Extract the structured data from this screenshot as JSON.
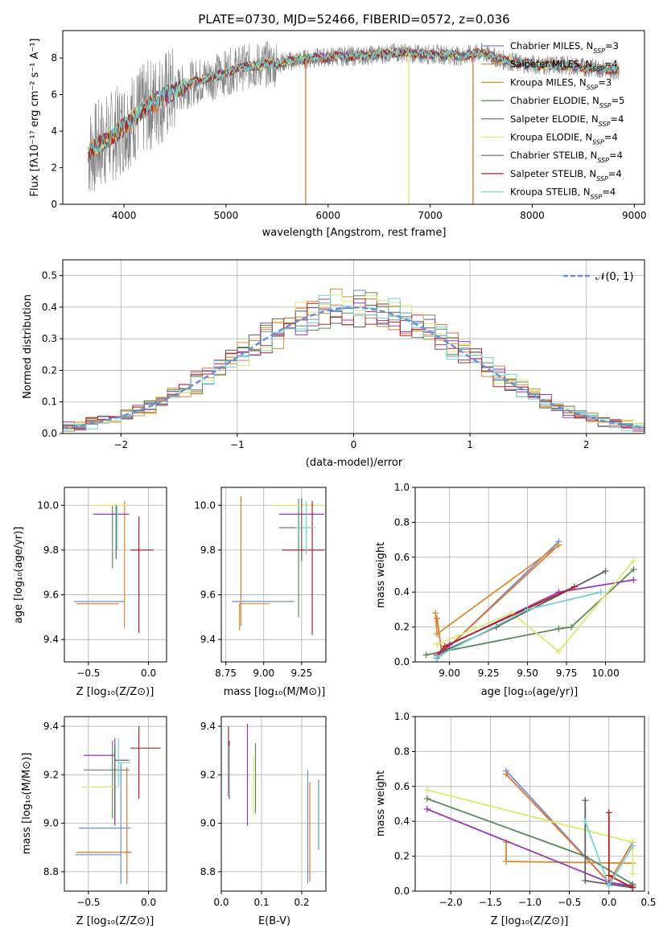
{
  "figure": {
    "title": "PLATE=0730, MJD=52466, FIBERID=0572, z=0.036"
  },
  "colors": {
    "series": [
      "#6a8fd6",
      "#e9722c",
      "#d98b2e",
      "#5a8a5a",
      "#9b37b5",
      "#dde96a",
      "#5f5f5f",
      "#b22222",
      "#6fd3d3"
    ],
    "normal": "#6a8fd6",
    "grid": "#b0b0b0",
    "data_gray": "#808080"
  },
  "chart_data": [
    {
      "id": "spectrum",
      "type": "line",
      "xlabel": "wavelength [Angstrom, rest frame]",
      "ylabel": "Flux [fλ10⁻¹⁷ erg cm⁻² s⁻¹ A⁻¹]",
      "xlim": [
        3400,
        9100
      ],
      "ylim": [
        0,
        9.5
      ],
      "xticks": [
        "4000",
        "5000",
        "6000",
        "7000",
        "8000",
        "9000"
      ],
      "yticks": [
        "0",
        "2",
        "4",
        "6",
        "8"
      ],
      "grid": false,
      "legend_position": "top-right",
      "legend": [
        "Chabrier MILES, N_SSP=3",
        "Salpeter MILES, N_SSP=4",
        "Kroupa MILES, N_SSP=3",
        "Chabrier ELODIE, N_SSP=5",
        "Salpeter ELODIE, N_SSP=4",
        "Kroupa ELODIE, N_SSP=4",
        "Chabrier STELIB, N_SSP=4",
        "Salpeter STELIB, N_SSP=4",
        "Kroupa STELIB, N_SSP=4"
      ],
      "continuum": {
        "x": [
          3650,
          3800,
          3950,
          4100,
          4300,
          4500,
          4700,
          4900,
          5100,
          5300,
          5500,
          5700,
          5900,
          6100,
          6300,
          6500,
          6700,
          6900,
          7100,
          7300,
          7500,
          7700,
          7900,
          8100,
          8300,
          8500,
          8700,
          8850
        ],
        "y": [
          2.8,
          3.4,
          4.0,
          4.8,
          5.6,
          6.2,
          6.7,
          7.0,
          7.4,
          7.6,
          7.7,
          7.9,
          8.0,
          8.1,
          8.1,
          8.2,
          8.3,
          8.2,
          8.2,
          8.1,
          8.3,
          7.9,
          7.7,
          7.6,
          7.6,
          7.5,
          7.4,
          7.3
        ]
      }
    },
    {
      "id": "residuals",
      "type": "line",
      "xlabel": "(data-model)/error",
      "ylabel": "Normed distribution",
      "xlim": [
        -2.5,
        2.5
      ],
      "ylim": [
        0,
        0.55
      ],
      "xticks": [
        "−2",
        "−1",
        "0",
        "1",
        "2"
      ],
      "yticks": [
        "0.0",
        "0.1",
        "0.2",
        "0.3",
        "0.4",
        "0.5"
      ],
      "grid": true,
      "legend_position": "top-right",
      "legend": [
        "𝒩(0, 1)"
      ],
      "normal": {
        "mu": 0,
        "sigma": 1
      }
    },
    {
      "id": "age-vs-Z",
      "type": "errorbar",
      "xlabel": "Z [log₁₀(Z/Z⊙)]",
      "ylabel": "age  [log₁₀(age/yr)]",
      "xlim": [
        -0.7,
        0.15
      ],
      "ylim": [
        9.3,
        10.08
      ],
      "xticks": [
        "−0.5",
        "0.0"
      ],
      "yticks": [
        "9.4",
        "9.6",
        "9.8",
        "10.0"
      ],
      "grid": true,
      "points": [
        {
          "x": -0.22,
          "y": 9.57,
          "xerr": [
            0.4,
            0.0
          ],
          "yerr": [
            0.0,
            0.0
          ]
        },
        {
          "x": -0.24,
          "y": 9.56,
          "xerr": [
            0.36,
            0.04
          ],
          "yerr": [
            0.0,
            0.0
          ]
        },
        {
          "x": -0.24,
          "y": 9.9,
          "xerr": [
            0.0,
            0.0
          ],
          "yerr": [
            0.45,
            0.14
          ]
        },
        {
          "x": -0.2,
          "y": 10.01,
          "xerr": [
            0.0,
            0.0
          ],
          "yerr": [
            0.0,
            0.0
          ]
        },
        {
          "x": -0.28,
          "y": 9.96,
          "xerr": [
            0.18,
            0.12
          ],
          "yerr": [
            0.0,
            0.0
          ]
        },
        {
          "x": -0.3,
          "y": 10.0,
          "xerr": [
            0.18,
            0.12
          ],
          "yerr": [
            0.0,
            0.0
          ]
        },
        {
          "x": -0.27,
          "y": 9.9,
          "xerr": [
            0.0,
            0.04
          ],
          "yerr": [
            0.1,
            0.1
          ]
        },
        {
          "x": -0.09,
          "y": 9.8,
          "xerr": [
            0.05,
            0.13
          ],
          "yerr": [
            0.38,
            0.15
          ]
        },
        {
          "x": -0.27,
          "y": 9.9,
          "xerr": [
            0.0,
            0.0
          ],
          "yerr": [
            0.0,
            0.0
          ]
        }
      ]
    },
    {
      "id": "age-vs-mass",
      "type": "errorbar",
      "xlabel": "mass [log₁₀(M/M⊙)]",
      "ylabel": "",
      "xlim": [
        8.72,
        9.41
      ],
      "ylim": [
        9.3,
        10.08
      ],
      "xticks": [
        "8.75",
        "9.00",
        "9.25"
      ],
      "yticks": [
        "9.4",
        "9.6",
        "9.8",
        "10.0"
      ],
      "grid": true
    },
    {
      "id": "weight-vs-age",
      "type": "line",
      "xlabel": "age  [log₁₀(age/yr)]",
      "ylabel": "mass weight",
      "xlim": [
        8.78,
        10.25
      ],
      "ylim": [
        0.0,
        1.0
      ],
      "xticks": [
        "9.00",
        "9.25",
        "9.50",
        "9.75",
        "10.00"
      ],
      "yticks": [
        "0.0",
        "0.2",
        "0.4",
        "0.6",
        "0.8",
        "1.0"
      ],
      "grid": true,
      "series": [
        {
          "x": [
            8.92,
            9.7
          ],
          "y": [
            0.02,
            0.69
          ]
        },
        {
          "x": [
            8.92,
            8.95,
            9.7
          ],
          "y": [
            0.25,
            0.05,
            0.67
          ]
        },
        {
          "x": [
            8.91,
            8.92,
            9.7
          ],
          "y": [
            0.28,
            0.16,
            0.67
          ]
        },
        {
          "x": [
            8.85,
            9.7,
            9.78,
            10.18
          ],
          "y": [
            0.04,
            0.19,
            0.2,
            0.53
          ]
        },
        {
          "x": [
            8.92,
            9.0,
            9.7,
            10.18
          ],
          "y": [
            0.03,
            0.1,
            0.4,
            0.47
          ]
        },
        {
          "x": [
            8.92,
            9.4,
            9.7,
            10.18
          ],
          "y": [
            0.1,
            0.28,
            0.06,
            0.58
          ]
        },
        {
          "x": [
            8.96,
            9.3,
            10.0
          ],
          "y": [
            0.06,
            0.2,
            0.52
          ]
        },
        {
          "x": [
            8.92,
            8.97,
            9.8
          ],
          "y": [
            0.04,
            0.09,
            0.43
          ]
        },
        {
          "x": [
            8.92,
            9.5,
            9.97
          ],
          "y": [
            0.03,
            0.3,
            0.4
          ]
        }
      ]
    },
    {
      "id": "mass-vs-Z",
      "type": "errorbar",
      "xlabel": "Z [log₁₀(Z/Z⊙)]",
      "ylabel": "mass [log₁₀(M/M⊙)]",
      "xlim": [
        -0.7,
        0.15
      ],
      "ylim": [
        8.72,
        9.44
      ],
      "xticks": [
        "−0.5",
        "0.0"
      ],
      "yticks": [
        "8.8",
        "9.0",
        "9.2",
        "9.4"
      ],
      "grid": true
    },
    {
      "id": "mass-vs-EBV",
      "type": "errorbar",
      "xlabel": "E(B-V)",
      "ylabel": "",
      "xlim": [
        0.0,
        0.26
      ],
      "ylim": [
        8.72,
        9.44
      ],
      "xticks": [
        "0.0",
        "0.1",
        "0.2"
      ],
      "yticks": [
        "8.8",
        "9.0",
        "9.2",
        "9.4"
      ],
      "grid": true
    },
    {
      "id": "weight-vs-Z",
      "type": "line",
      "xlabel": "Z [log₁₀(Z/Z⊙)]",
      "ylabel": "mass weight",
      "xlim": [
        -2.45,
        0.45
      ],
      "ylim": [
        0.0,
        1.0
      ],
      "xticks": [
        "−2.0",
        "−1.5",
        "−1.0",
        "−0.5",
        "0.0",
        "0.5"
      ],
      "yticks": [
        "0.0",
        "0.2",
        "0.4",
        "0.6",
        "0.8",
        "1.0"
      ],
      "grid": true
    }
  ]
}
